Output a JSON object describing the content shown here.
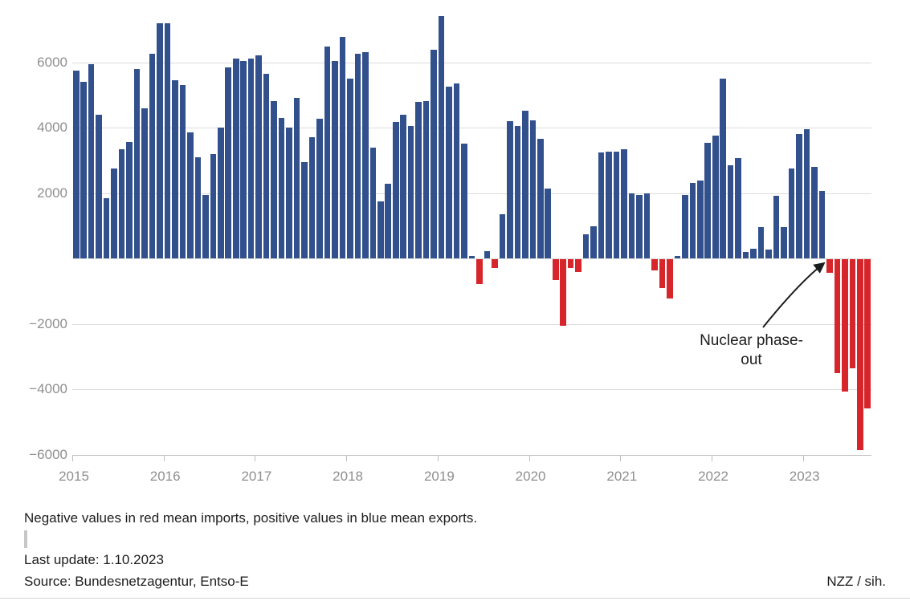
{
  "chart_data": {
    "type": "bar",
    "title": "",
    "x_start": "2015-01",
    "x_end": "2023-09",
    "year_labels": [
      "2015",
      "2016",
      "2017",
      "2018",
      "2019",
      "2020",
      "2021",
      "2022",
      "2023"
    ],
    "values": [
      5750,
      5400,
      5950,
      4400,
      1850,
      2750,
      3350,
      3550,
      5800,
      4600,
      6250,
      7200,
      7200,
      5450,
      5300,
      3850,
      3100,
      1950,
      3200,
      4000,
      5850,
      6100,
      6050,
      6100,
      6200,
      5650,
      4800,
      4300,
      4000,
      4900,
      2950,
      3700,
      4270,
      6470,
      6050,
      6770,
      5510,
      6250,
      6300,
      3380,
      1750,
      2290,
      4180,
      4400,
      4050,
      4790,
      4810,
      6370,
      7410,
      5260,
      5360,
      3510,
      80,
      -780,
      230,
      -280,
      1360,
      4200,
      4060,
      4520,
      4230,
      3660,
      2130,
      -640,
      -2050,
      -290,
      -400,
      740,
      990,
      3240,
      3260,
      3260,
      3340,
      2000,
      1930,
      2000,
      -350,
      -890,
      -1210,
      80,
      1950,
      2320,
      2370,
      3530,
      3750,
      5500,
      2840,
      3060,
      200,
      300,
      960,
      270,
      1920,
      960,
      2740,
      3800,
      3950,
      2790,
      2070,
      -440,
      -3500,
      -4050,
      -3340,
      -5850,
      -4580
    ],
    "y_gridlines": [
      6000,
      4000,
      2000,
      0,
      -2000,
      -4000
    ],
    "y_axis_line": -6000,
    "y_tick_labels": [
      {
        "value": 6000,
        "label": "6000"
      },
      {
        "value": 4000,
        "label": "4000"
      },
      {
        "value": 2000,
        "label": "2000"
      },
      {
        "value": -2000,
        "label": "−2000"
      },
      {
        "value": -4000,
        "label": "−4000"
      },
      {
        "value": -6000,
        "label": "−6000"
      }
    ],
    "ylim": [
      -6000,
      7500
    ],
    "positive_color": "#31508c",
    "negative_color": "#d6262b",
    "legend_position": "none",
    "annotation": {
      "label": "Nuclear phase-out",
      "line1": "Nuclear phase-",
      "line2": "out"
    }
  },
  "footer": {
    "note": "Negative values in red mean imports, positive values in blue mean exports.",
    "last_update": "Last update: 1.10.2023",
    "source": "Source: Bundesnetzagentur, Entso-E",
    "credit": "NZZ / sih."
  }
}
